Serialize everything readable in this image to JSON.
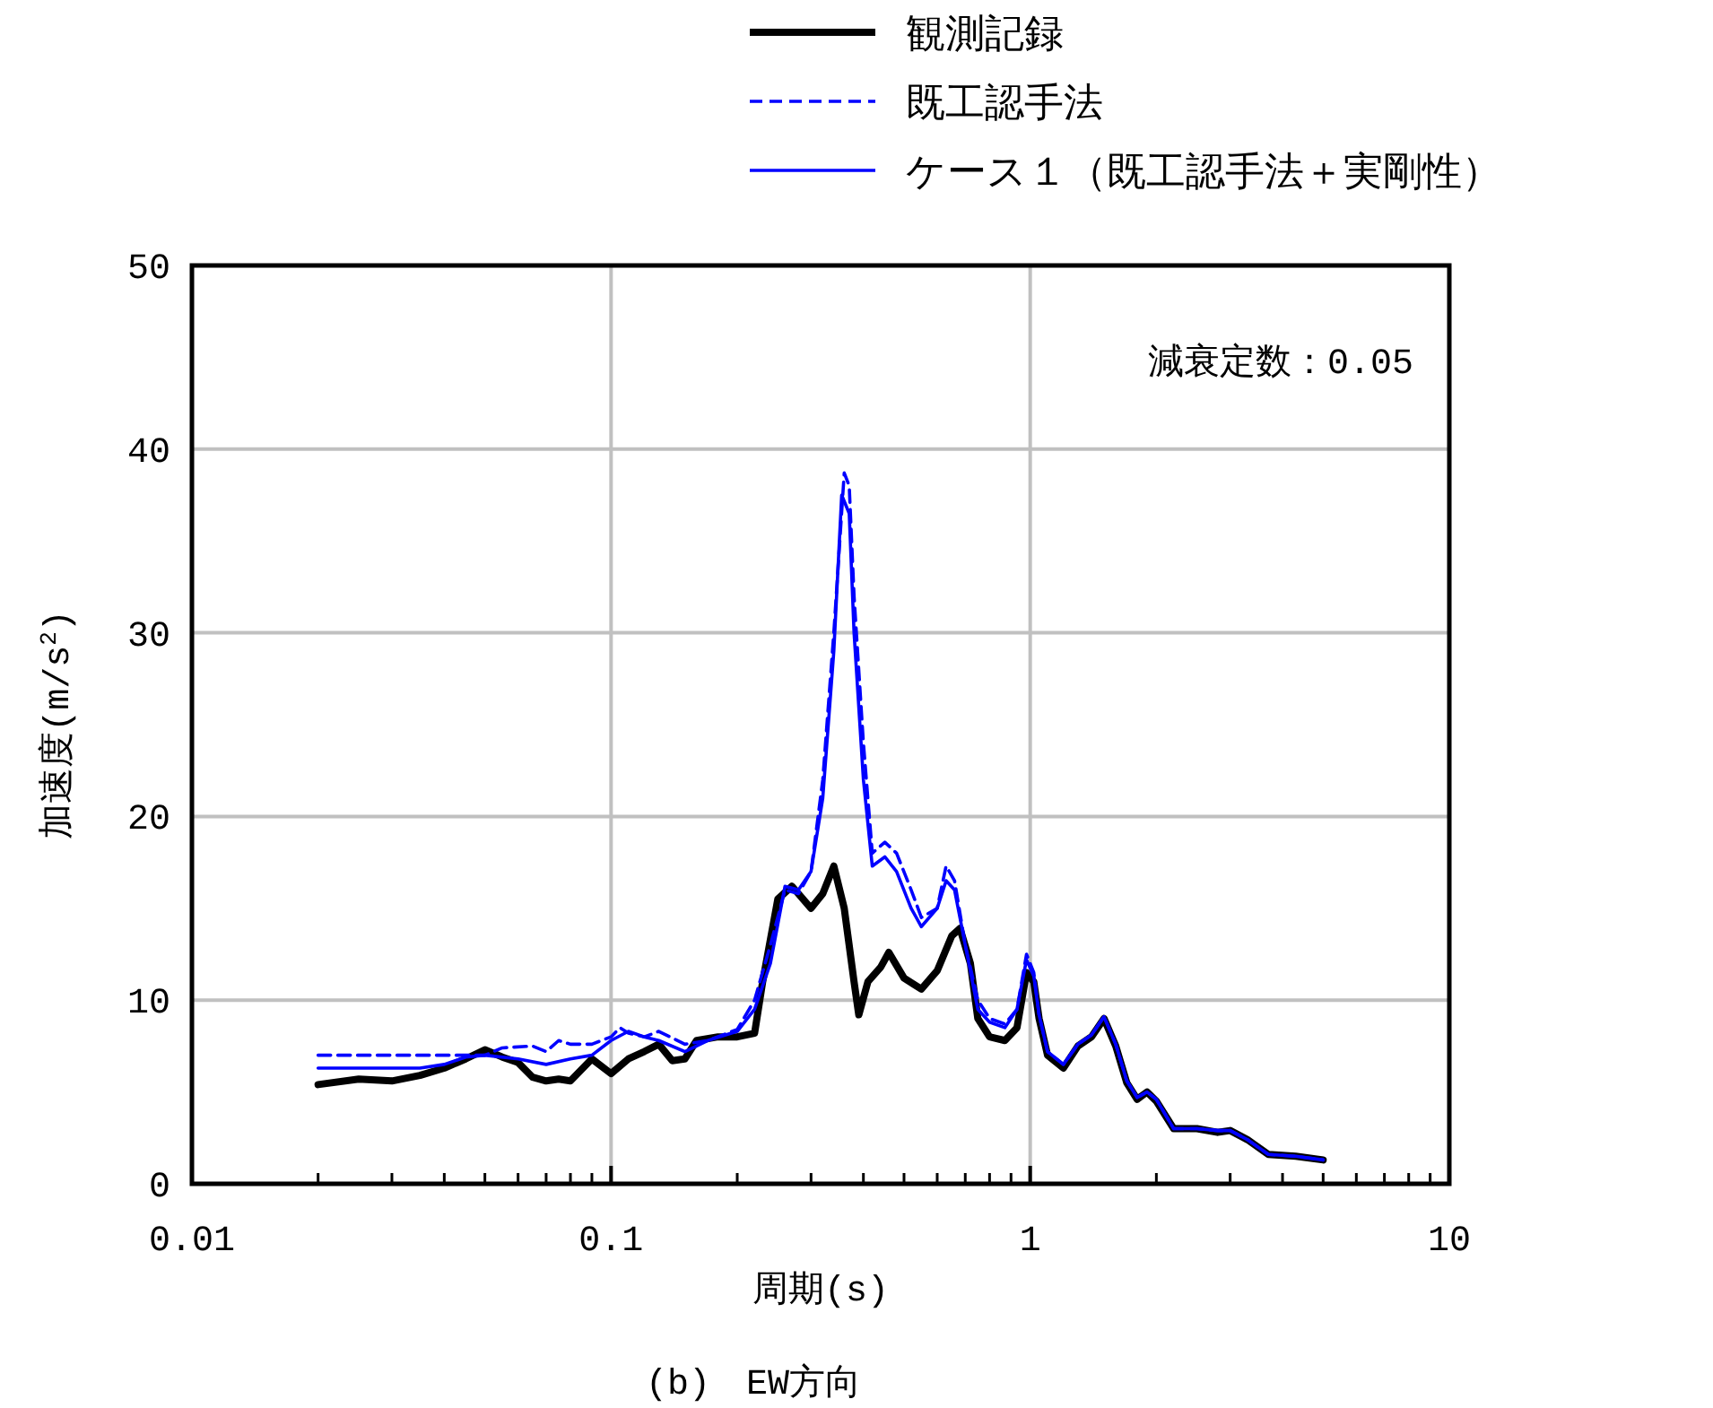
{
  "chart_data": {
    "type": "line",
    "xlabel": "周期(s)",
    "ylabel": "加速度(m/s$^{2}$)",
    "log": "x",
    "grid": true,
    "legend": "top",
    "marker": "none",
    "xlim": [
      0.01,
      10
    ],
    "xticks": [
      0.01,
      0.1,
      1,
      10
    ],
    "ylim": [
      0,
      50
    ],
    "yticks": [
      0,
      10,
      20,
      30,
      40,
      50
    ],
    "annotations": [
      "減衰定数：0.05",
      "(b)　EW方向"
    ],
    "series": [
      {
        "name": "観測記録",
        "color": "#000000",
        "line_style": "solid",
        "x": [
          0.02,
          0.025,
          0.03,
          0.035,
          0.04,
          0.045,
          0.05,
          0.055,
          0.06,
          0.065,
          0.07,
          0.075,
          0.08,
          0.09,
          0.1,
          0.11,
          0.12,
          0.13,
          0.14,
          0.15,
          0.16,
          0.18,
          0.2,
          0.22,
          0.23,
          0.25,
          0.27,
          0.3,
          0.32,
          0.34,
          0.36,
          0.38,
          0.39,
          0.41,
          0.44,
          0.46,
          0.5,
          0.55,
          0.6,
          0.65,
          0.68,
          0.72,
          0.75,
          0.8,
          0.87,
          0.93,
          0.98,
          1.02,
          1.05,
          1.1,
          1.2,
          1.3,
          1.4,
          1.5,
          1.6,
          1.7,
          1.8,
          1.9,
          2.0,
          2.2,
          2.5,
          2.8,
          3.0,
          3.3,
          3.7,
          4.3,
          5.0
        ],
        "values": [
          5.4,
          5.7,
          5.6,
          5.9,
          6.3,
          6.8,
          7.3,
          6.9,
          6.6,
          5.8,
          5.6,
          5.7,
          5.6,
          6.8,
          6.0,
          6.8,
          7.2,
          7.6,
          6.7,
          6.8,
          7.8,
          8.0,
          8.0,
          8.2,
          11,
          15.5,
          16.2,
          15.0,
          15.8,
          17.3,
          15,
          11,
          9.2,
          11,
          11.8,
          12.6,
          11.2,
          10.6,
          11.6,
          13.5,
          13.9,
          12,
          9,
          8,
          7.8,
          8.5,
          11.5,
          11,
          9,
          7,
          6.3,
          7.5,
          8,
          9.0,
          7.5,
          5.5,
          4.6,
          5,
          4.5,
          3.0,
          3.0,
          2.8,
          2.9,
          2.4,
          1.6,
          1.5,
          1.3
        ]
      },
      {
        "name": "既工認手法",
        "color": "#0000ff",
        "line_style": "dashed",
        "x": [
          0.02,
          0.05,
          0.055,
          0.065,
          0.07,
          0.075,
          0.08,
          0.09,
          0.1,
          0.105,
          0.11,
          0.12,
          0.13,
          0.15,
          0.17,
          0.2,
          0.22,
          0.24,
          0.26,
          0.28,
          0.3,
          0.32,
          0.34,
          0.36,
          0.37,
          0.38,
          0.4,
          0.42,
          0.45,
          0.48,
          0.52,
          0.55,
          0.6,
          0.63,
          0.66,
          0.7,
          0.75,
          0.8,
          0.87,
          0.93,
          0.98,
          1.02,
          1.05,
          1.1,
          1.2,
          1.3,
          1.4,
          1.5,
          1.6,
          1.7,
          1.8,
          1.9,
          2.0,
          2.2,
          2.5,
          2.8,
          3.0,
          3.3,
          3.7,
          4.3,
          5.0
        ],
        "values": [
          7.0,
          7.0,
          7.4,
          7.5,
          7.2,
          7.8,
          7.6,
          7.6,
          8.0,
          8.5,
          8.2,
          8.0,
          8.3,
          7.6,
          7.8,
          8.4,
          10,
          13,
          16,
          15.8,
          17,
          22,
          30,
          38.7,
          38,
          32,
          24,
          18,
          18.6,
          18,
          16,
          14.5,
          15,
          17.3,
          16.5,
          13,
          10,
          9,
          8.7,
          9.5,
          12.5,
          11.5,
          9.2,
          7.2,
          6.5,
          7.6,
          8.1,
          9.1,
          7.6,
          5.6,
          4.7,
          5,
          4.6,
          3.0,
          3.0,
          2.9,
          2.9,
          2.4,
          1.6,
          1.5,
          1.3
        ]
      },
      {
        "name": "ケース１（既工認手法＋実剛性）",
        "color": "#0000ff",
        "line_style": "solid",
        "x": [
          0.02,
          0.035,
          0.04,
          0.045,
          0.05,
          0.06,
          0.07,
          0.08,
          0.09,
          0.1,
          0.11,
          0.12,
          0.13,
          0.15,
          0.17,
          0.2,
          0.22,
          0.24,
          0.26,
          0.28,
          0.3,
          0.32,
          0.34,
          0.355,
          0.37,
          0.38,
          0.4,
          0.42,
          0.45,
          0.48,
          0.52,
          0.55,
          0.6,
          0.63,
          0.66,
          0.7,
          0.75,
          0.8,
          0.87,
          0.93,
          0.98,
          1.02,
          1.05,
          1.1,
          1.2,
          1.3,
          1.4,
          1.5,
          1.6,
          1.7,
          1.8,
          1.9,
          2.0,
          2.2,
          2.5,
          2.8,
          3.0,
          3.3,
          3.7,
          4.3,
          5.0
        ],
        "values": [
          6.3,
          6.3,
          6.5,
          6.9,
          7.0,
          6.8,
          6.5,
          6.8,
          7.0,
          7.8,
          8.3,
          8.0,
          7.8,
          7.2,
          7.8,
          8.3,
          9.5,
          12,
          16.2,
          16,
          17,
          21,
          29,
          37.5,
          36.5,
          30,
          22,
          17.3,
          17.8,
          17,
          15,
          14,
          15,
          16.5,
          16,
          13,
          9.5,
          8.8,
          8.5,
          9.5,
          12.2,
          11.3,
          9.2,
          7.2,
          6.5,
          7.6,
          8.1,
          9.1,
          7.6,
          5.6,
          4.7,
          5,
          4.6,
          3.0,
          3.0,
          2.9,
          2.9,
          2.4,
          1.6,
          1.5,
          1.3
        ]
      }
    ]
  }
}
